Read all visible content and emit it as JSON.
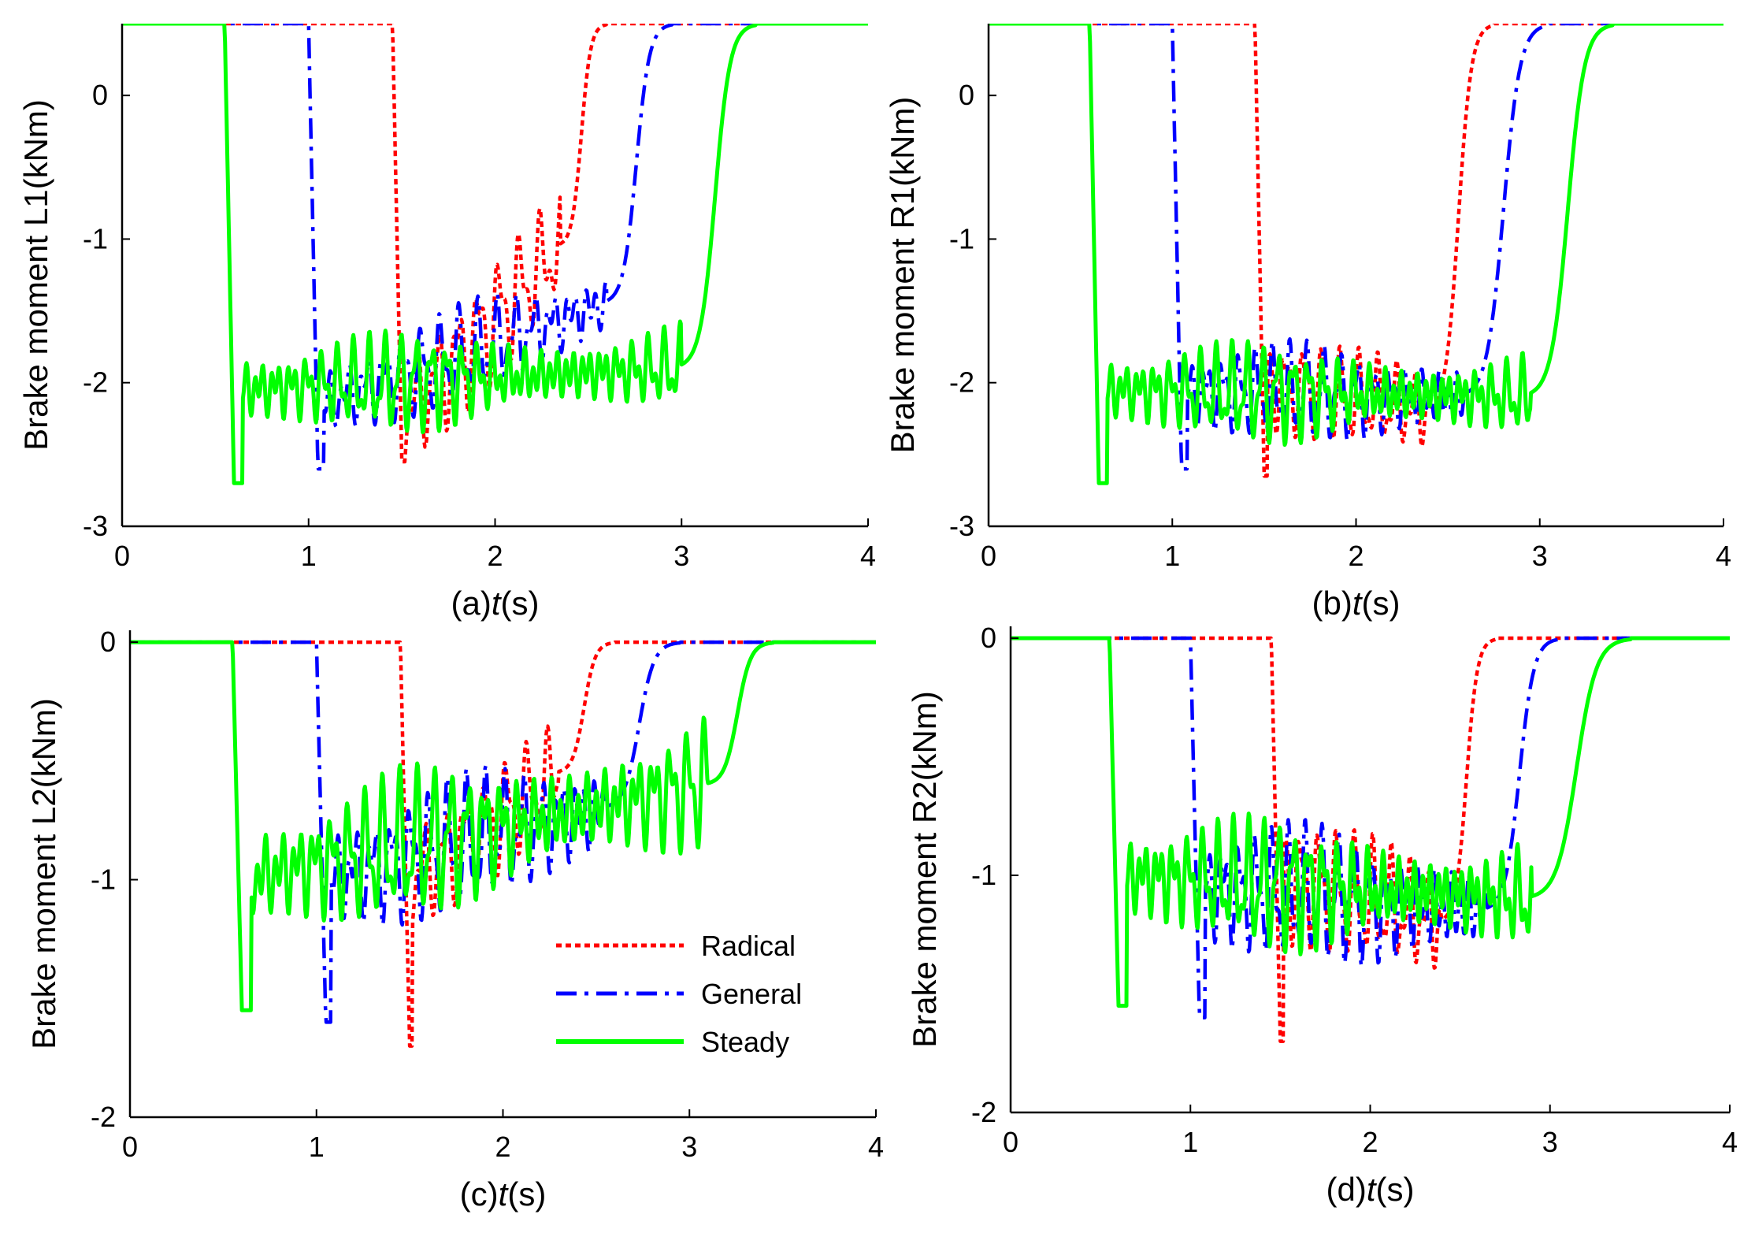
{
  "figure": {
    "legend": {
      "entries": [
        "Radical",
        "General",
        "Steady"
      ],
      "colors": [
        "#ff0000",
        "#0000ff",
        "#00ff00"
      ],
      "styles": [
        "dotted",
        "dashdot",
        "solid"
      ],
      "placement": "lower-right of panel (c)"
    }
  },
  "chart_data": [
    {
      "panel": "a",
      "type": "line",
      "xlabel_prefix": "(a)",
      "xlabel_var": "t",
      "xlabel_unit": "(s)",
      "ylabel": "Brake moment L1(kNm)",
      "xlim": [
        0,
        4
      ],
      "ylim": [
        -3,
        0.5
      ],
      "xticks": [
        0,
        1,
        2,
        3,
        4
      ],
      "xtick_labels": [
        "0",
        "1",
        "2",
        "3",
        "4"
      ],
      "yticks": [
        -3,
        -2,
        -1,
        0
      ],
      "ytick_labels": [
        "-3",
        "-2",
        "-1",
        "0"
      ],
      "grid": false,
      "series": [
        {
          "name": "Radical",
          "color": "#ff0000",
          "style": "dotted",
          "t_drop": 1.45,
          "osc_start": -2.25,
          "osc_end": -1.05,
          "t_settle": 2.35,
          "t_rise_end": 2.6,
          "amp": 0.45,
          "freq": 9,
          "t_phase": 0.3,
          "low": -2.55
        },
        {
          "name": "General",
          "color": "#0000ff",
          "style": "dashdot",
          "t_drop": 1.0,
          "osc_start": -2.15,
          "osc_end": -1.45,
          "t_settle": 2.6,
          "t_rise_end": 2.95,
          "amp": 0.35,
          "freq": 10,
          "t_phase": 1.1,
          "low": -2.6
        },
        {
          "name": "Steady",
          "color": "#00ff00",
          "style": "solid",
          "t_drop": 0.55,
          "osc_start": -2.05,
          "osc_end": -1.9,
          "t_settle": 3.0,
          "t_rise_end": 3.4,
          "amp": 0.35,
          "freq": 12,
          "t_phase": 2.2,
          "low": -2.7
        }
      ]
    },
    {
      "panel": "b",
      "type": "line",
      "xlabel_prefix": "(b)",
      "xlabel_var": "t",
      "xlabel_unit": "(s)",
      "ylabel": "Brake moment R1(kNm)",
      "xlim": [
        0,
        4
      ],
      "ylim": [
        -3,
        0.5
      ],
      "xticks": [
        0,
        1,
        2,
        3,
        4
      ],
      "xtick_labels": [
        "0",
        "1",
        "2",
        "3",
        "4"
      ],
      "yticks": [
        -3,
        -2,
        -1,
        0
      ],
      "ytick_labels": [
        "-3",
        "-2",
        "-1",
        "0"
      ],
      "grid": false,
      "series": [
        {
          "name": "Radical",
          "color": "#ff0000",
          "style": "dotted",
          "t_drop": 1.45,
          "osc_start": -2.0,
          "osc_end": -2.2,
          "t_settle": 2.4,
          "t_rise_end": 2.75,
          "amp": 0.35,
          "freq": 10,
          "t_phase": 0.5,
          "low": -2.65
        },
        {
          "name": "General",
          "color": "#0000ff",
          "style": "dashdot",
          "t_drop": 1.0,
          "osc_start": -2.05,
          "osc_end": -2.1,
          "t_settle": 2.6,
          "t_rise_end": 3.05,
          "amp": 0.35,
          "freq": 11,
          "t_phase": 1.4,
          "low": -2.6
        },
        {
          "name": "Steady",
          "color": "#00ff00",
          "style": "solid",
          "t_drop": 0.55,
          "osc_start": -2.05,
          "osc_end": -2.1,
          "t_settle": 2.95,
          "t_rise_end": 3.4,
          "amp": 0.35,
          "freq": 12,
          "t_phase": 2.3,
          "low": -2.7
        }
      ]
    },
    {
      "panel": "c",
      "type": "line",
      "xlabel_prefix": "(c)",
      "xlabel_var": "t",
      "xlabel_unit": "(s)",
      "ylabel": "Brake moment L2(kNm)",
      "xlim": [
        0,
        4
      ],
      "ylim": [
        -2,
        0.05
      ],
      "xticks": [
        0,
        1,
        2,
        3,
        4
      ],
      "xtick_labels": [
        "0",
        "1",
        "2",
        "3",
        "4"
      ],
      "yticks": [
        -2,
        -1,
        0
      ],
      "ytick_labels": [
        "-2",
        "-1",
        "0"
      ],
      "grid": false,
      "series": [
        {
          "name": "Radical",
          "color": "#ff0000",
          "style": "dotted",
          "t_drop": 1.45,
          "osc_start": -1.0,
          "osc_end": -0.55,
          "t_settle": 2.3,
          "t_rise_end": 2.6,
          "amp": 0.25,
          "freq": 9,
          "t_phase": 0.4,
          "low": -1.7
        },
        {
          "name": "General",
          "color": "#0000ff",
          "style": "dashdot",
          "t_drop": 1.0,
          "osc_start": -1.0,
          "osc_end": -0.7,
          "t_settle": 2.55,
          "t_rise_end": 2.95,
          "amp": 0.3,
          "freq": 10,
          "t_phase": 1.2,
          "low": -1.6
        },
        {
          "name": "Steady",
          "color": "#00ff00",
          "style": "solid",
          "t_drop": 0.55,
          "osc_start": -1.0,
          "osc_end": -0.6,
          "t_settle": 3.1,
          "t_rise_end": 3.45,
          "amp": 0.32,
          "freq": 11,
          "t_phase": 2.1,
          "low": -1.55
        }
      ]
    },
    {
      "panel": "d",
      "type": "line",
      "xlabel_prefix": "(d)",
      "xlabel_var": "t",
      "xlabel_unit": "(s)",
      "ylabel": "Brake moment R2(kNm)",
      "xlim": [
        0,
        4
      ],
      "ylim": [
        -2,
        0.05
      ],
      "xticks": [
        0,
        1,
        2,
        3,
        4
      ],
      "xtick_labels": [
        "0",
        "1",
        "2",
        "3",
        "4"
      ],
      "yticks": [
        -2,
        -1,
        0
      ],
      "ytick_labels": [
        "-2",
        "-1",
        "0"
      ],
      "grid": false,
      "series": [
        {
          "name": "Radical",
          "color": "#ff0000",
          "style": "dotted",
          "t_drop": 1.45,
          "osc_start": -1.0,
          "osc_end": -1.2,
          "t_settle": 2.4,
          "t_rise_end": 2.7,
          "amp": 0.28,
          "freq": 10,
          "t_phase": 0.6,
          "low": -1.7
        },
        {
          "name": "General",
          "color": "#0000ff",
          "style": "dashdot",
          "t_drop": 1.0,
          "osc_start": -1.05,
          "osc_end": -1.15,
          "t_settle": 2.65,
          "t_rise_end": 3.05,
          "amp": 0.3,
          "freq": 11,
          "t_phase": 1.5,
          "low": -1.6
        },
        {
          "name": "Steady",
          "color": "#00ff00",
          "style": "solid",
          "t_drop": 0.55,
          "osc_start": -1.0,
          "osc_end": -1.1,
          "t_settle": 2.9,
          "t_rise_end": 3.45,
          "amp": 0.28,
          "freq": 12,
          "t_phase": 2.4,
          "low": -1.55
        }
      ]
    }
  ]
}
